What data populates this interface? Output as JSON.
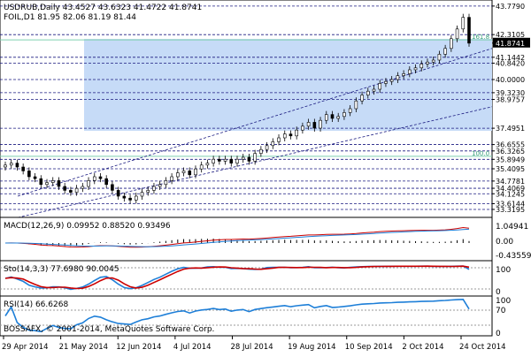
{
  "header": {
    "symbol_line": "USDRUB,Daily  43.4527 43.6323 41.4722 41.8741",
    "foil_line": "FOIL,D1 81.95 82.06 81.19 81.44"
  },
  "footer": {
    "copyright": "BOSSAFX, © 2001-2014, MetaQuotes Software Corp."
  },
  "price_labels": [
    "43.7790",
    "42.3105",
    "41.8741",
    "41.1442",
    "40.8420",
    "40.0000",
    "39.3230",
    "38.9757",
    "37.4951",
    "36.6555",
    "36.3265",
    "35.8949",
    "35.4095",
    "34.7781",
    "34.4069",
    "34.1245",
    "33.6144",
    "33.3195"
  ],
  "fib_labels": [
    "161.8",
    "100.0"
  ],
  "panels": {
    "macd": {
      "label": "MACD(12,26,9) 0.09952 0.88520 0.93496",
      "scale": [
        "1.04941",
        "0.00",
        "-0.43559"
      ]
    },
    "sto": {
      "label": "Sto(14,3,3) 77.6980 90.0045",
      "scale": [
        "100",
        "0"
      ]
    },
    "rsi": {
      "label": "RSI(14) 66.6268",
      "scale": [
        "100",
        "70",
        "0"
      ]
    }
  },
  "dates": [
    "29 Apr 2014",
    "21 May 2014",
    "12 Jun 2014",
    "4 Jul 2014",
    "28 Jul 2014",
    "19 Aug 2014",
    "10 Sep 2014",
    "2 Oct 2014",
    "24 Oct 2014"
  ],
  "colors": {
    "background": "#ffffff",
    "candles": "#000000",
    "zone": "#c6dbf7",
    "macd_line": "#cc0000",
    "macd_signal": "#1e7fd8",
    "sto_main": "#1e7fd8",
    "sto_signal": "#cc0000",
    "rsi": "#1e7fd8",
    "grid_dashed": "#1a1a80",
    "fib_line": "#7fd0b0",
    "current_price_box": "#000000"
  },
  "chart_data": {
    "type": "candlestick",
    "title": "USDRUB,Daily",
    "price_range": [
      33.0,
      44.0
    ],
    "x_range_dates": [
      "29 Apr 2014",
      "24 Oct 2014"
    ],
    "current_price": 41.8741,
    "close_series_approx": [
      35.6,
      35.7,
      35.5,
      35.3,
      35.0,
      34.9,
      34.6,
      34.7,
      34.8,
      34.5,
      34.3,
      34.2,
      34.4,
      34.5,
      34.8,
      35.0,
      34.9,
      34.6,
      34.3,
      34.0,
      33.9,
      33.8,
      34.0,
      34.2,
      34.3,
      34.5,
      34.6,
      34.8,
      35.0,
      35.2,
      35.3,
      35.1,
      35.4,
      35.6,
      35.7,
      35.9,
      35.8,
      35.9,
      35.7,
      35.9,
      36.0,
      35.8,
      36.2,
      36.4,
      36.6,
      36.8,
      37.0,
      37.2,
      37.1,
      37.4,
      37.6,
      37.8,
      37.5,
      37.9,
      38.2,
      38.0,
      38.1,
      38.3,
      38.5,
      38.9,
      39.2,
      39.4,
      39.5,
      39.8,
      39.9,
      40.0,
      40.2,
      40.3,
      40.5,
      40.6,
      40.8,
      40.9,
      41.0,
      41.3,
      41.6,
      42.1,
      42.6,
      43.2,
      41.87
    ],
    "horizontal_levels": [
      43.779,
      42.3105,
      41.1442,
      40.842,
      40.0,
      39.323,
      38.9757,
      37.4951,
      36.6555,
      36.3265,
      35.8949,
      35.4095,
      34.7781,
      34.4069,
      34.1245,
      33.6144,
      33.3195
    ],
    "indicators": {
      "macd": {
        "params": "12,26,9",
        "values": [
          0.09952,
          0.8852,
          0.93496
        ]
      },
      "stochastic": {
        "params": "14,3,3",
        "main": 77.698,
        "signal": 90.0045,
        "levels": [
          20,
          80
        ]
      },
      "rsi": {
        "period": 14,
        "value": 66.6268,
        "levels": [
          30,
          70
        ]
      }
    }
  }
}
